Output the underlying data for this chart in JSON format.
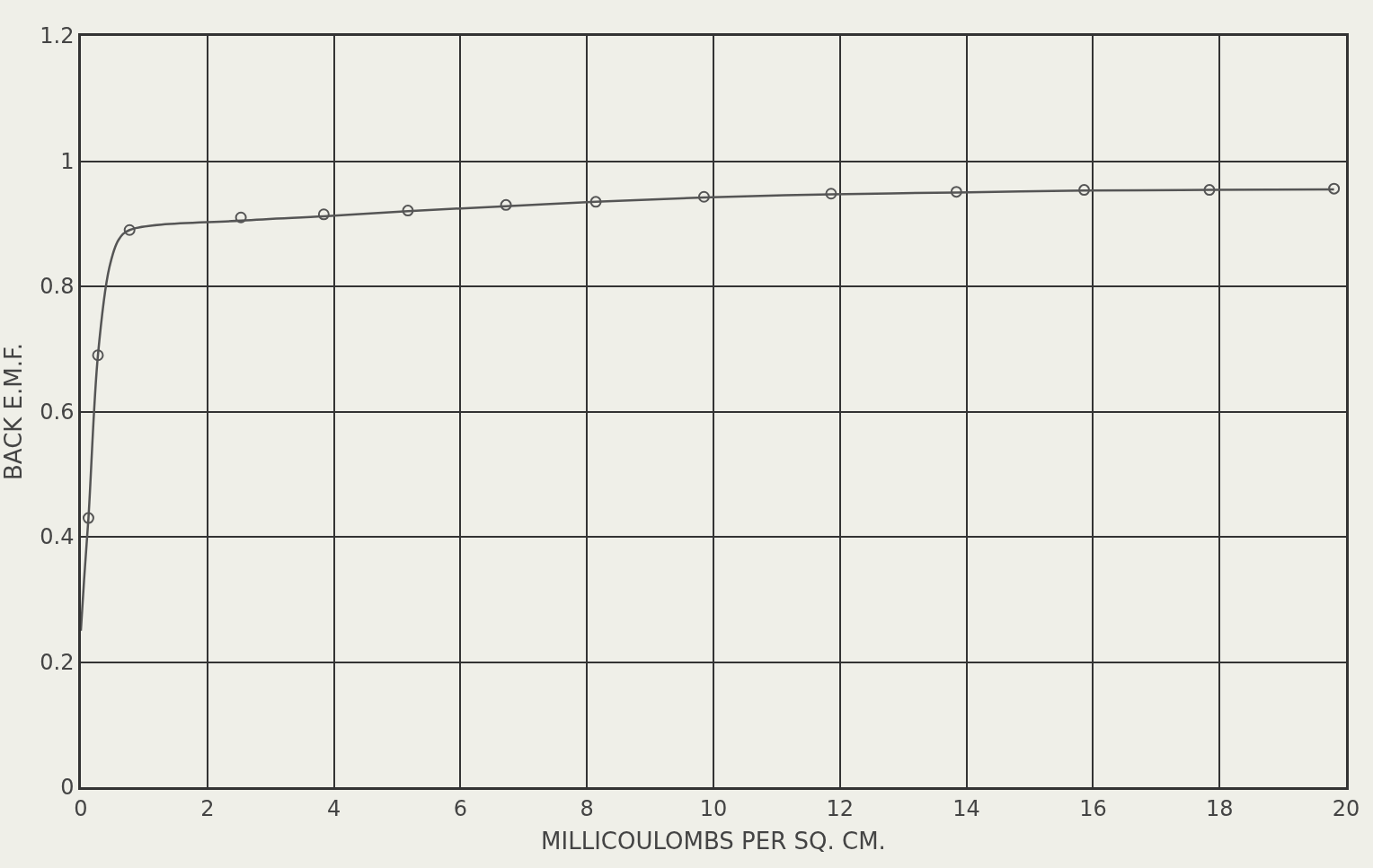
{
  "chart_data": {
    "type": "scatter",
    "xlabel": "MILLICOULOMBS PER SQ. CM.",
    "ylabel": "BACK E.M.F.",
    "xlim": [
      0,
      20
    ],
    "ylim": [
      0,
      1.2
    ],
    "xticks": [
      0,
      2,
      4,
      6,
      8,
      10,
      12,
      14,
      16,
      18,
      20
    ],
    "yticks": [
      0,
      0.2,
      0.4,
      0.6,
      0.8,
      1.0,
      1.2
    ],
    "grid": true,
    "series": [
      {
        "type": "line",
        "color": "#555555",
        "marker": "none",
        "x": [
          0,
          0.05,
          0.12,
          0.27,
          0.45,
          0.6,
          0.77,
          2.53,
          3.84,
          5.17,
          6.72,
          8.14,
          9.85,
          11.86,
          13.84,
          15.86,
          17.84,
          19.81
        ],
        "values": [
          0.25,
          0.33,
          0.43,
          0.69,
          0.83,
          0.875,
          0.89,
          0.905,
          0.912,
          0.92,
          0.928,
          0.935,
          0.942,
          0.947,
          0.95,
          0.953,
          0.954,
          0.955
        ]
      },
      {
        "color": "#555555",
        "marker": "circle",
        "x": [
          0.12,
          0.27,
          0.77,
          2.53,
          3.84,
          5.17,
          6.72,
          8.14,
          9.85,
          11.86,
          13.84,
          15.86,
          17.84,
          19.81
        ],
        "values": [
          0.43,
          0.69,
          0.89,
          0.91,
          0.915,
          0.921,
          0.93,
          0.935,
          0.943,
          0.948,
          0.951,
          0.954,
          0.954,
          0.956
        ]
      }
    ]
  }
}
